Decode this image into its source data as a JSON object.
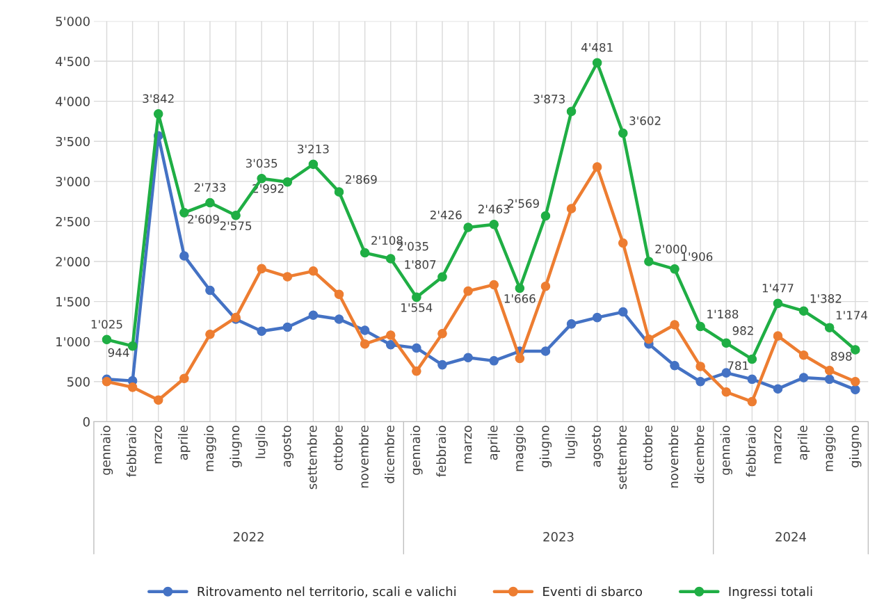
{
  "chart_data": {
    "type": "line",
    "categories": [
      "gennaio",
      "febbraio",
      "marzo",
      "aprile",
      "maggio",
      "giugno",
      "luglio",
      "agosto",
      "settembre",
      "ottobre",
      "novembre",
      "dicembre",
      "gennaio",
      "febbraio",
      "marzo",
      "aprile",
      "maggio",
      "giugno",
      "luglio",
      "agosto",
      "settembre",
      "ottobre",
      "novembre",
      "dicembre",
      "gennaio",
      "febbraio",
      "marzo",
      "aprile",
      "maggio",
      "giugno"
    ],
    "annotations": [
      "2022",
      "2023",
      "2024"
    ],
    "series": [
      {
        "name": "Ritrovamento nel territorio, scali e valichi",
        "color": "#4472c4",
        "values": [
          530,
          510,
          3570,
          2070,
          1640,
          1280,
          1130,
          1180,
          1330,
          1280,
          1140,
          960,
          920,
          710,
          800,
          760,
          880,
          880,
          1220,
          1300,
          1370,
          970,
          700,
          500,
          610,
          530,
          410,
          550,
          530,
          400
        ]
      },
      {
        "name": "Eventi di sbarco",
        "color": "#ed7d31",
        "values": [
          500,
          430,
          270,
          540,
          1090,
          1300,
          1910,
          1810,
          1880,
          1590,
          970,
          1080,
          630,
          1100,
          1630,
          1710,
          790,
          1690,
          2660,
          3180,
          2230,
          1030,
          1210,
          690,
          370,
          250,
          1070,
          830,
          640,
          500
        ]
      },
      {
        "name": "Ingressi totali",
        "color": "#1fae44",
        "values": [
          1025,
          944,
          3842,
          2609,
          2733,
          2575,
          3035,
          2992,
          3213,
          2869,
          2108,
          2035,
          1554,
          1807,
          2426,
          2463,
          1666,
          2569,
          3873,
          4481,
          3602,
          2000,
          1906,
          1188,
          982,
          781,
          1477,
          1382,
          1174,
          898
        ],
        "value_labels": [
          "1'025",
          "944",
          "3'842",
          "2'609",
          "2'733",
          "2'575",
          "3'035",
          "2'992",
          "3'213",
          "2'869",
          "2'108",
          "2'035",
          "1'554",
          "1'807",
          "2'426",
          "2'463",
          "1'666",
          "2'569",
          "3'873",
          "4'481",
          "3'602",
          "2'000",
          "1'906",
          "1'188",
          "982",
          "781",
          "1'477",
          "1'382",
          "1'174",
          "898"
        ]
      }
    ],
    "ylim": [
      0,
      5000
    ],
    "yticks": [
      0,
      {
        "value": 500,
        "label": "500"
      },
      {
        "value": 1000,
        "label": "1'000"
      },
      {
        "value": 1500,
        "label": "1'500"
      },
      {
        "value": 2000,
        "label": "2'000"
      },
      {
        "value": 2500,
        "label": "2'500"
      },
      {
        "value": 3000,
        "label": "3'000"
      },
      {
        "value": 3500,
        "label": "3'500"
      },
      {
        "value": 4000,
        "label": "4'000"
      },
      {
        "value": 4500,
        "label": "4'500"
      },
      {
        "value": 5000,
        "label": "5'000"
      }
    ],
    "grid": true,
    "legend": "bottom",
    "marker": "circle",
    "line_style": "solid"
  }
}
